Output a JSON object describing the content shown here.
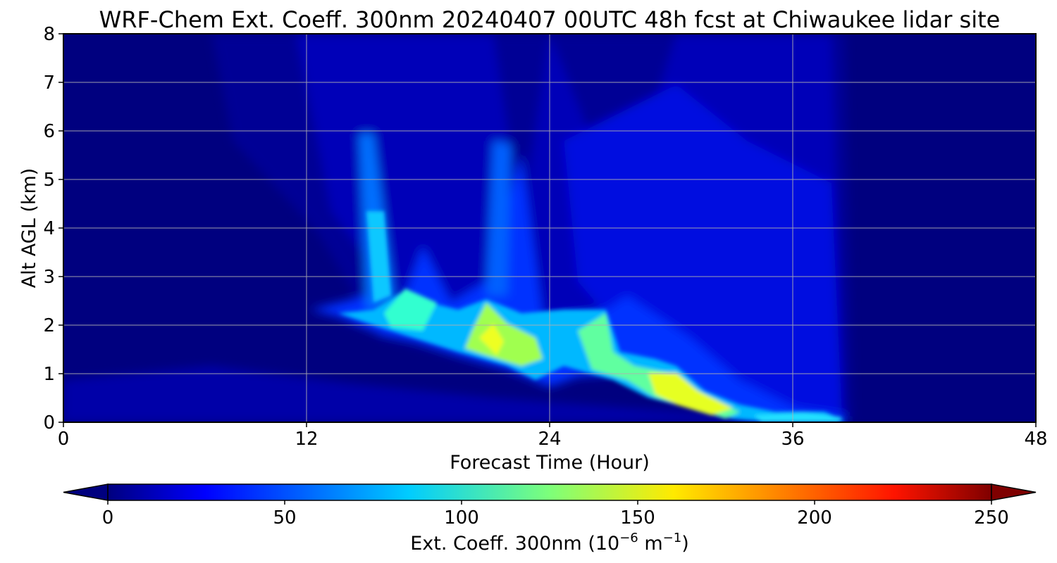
{
  "chart_data": {
    "type": "heatmap",
    "title": "WRF-Chem Ext. Coeff. 300nm  20240407 00UTC 48h fcst at Chiwaukee lidar site",
    "xlabel": "Forecast Time (Hour)",
    "ylabel": "Alt AGL (km)",
    "xlim": [
      0,
      48
    ],
    "ylim": [
      0,
      8
    ],
    "xticks": [
      "0",
      "12",
      "24",
      "36",
      "48"
    ],
    "yticks": [
      "0",
      "1",
      "2",
      "3",
      "4",
      "5",
      "6",
      "7",
      "8"
    ],
    "grid": true,
    "colormap": "jet",
    "colorbar": {
      "orientation": "horizontal",
      "position": "bottom",
      "label_main": "Ext. Coeff. 300nm  (10",
      "label_exp1": "−6",
      "label_mid": " m",
      "label_exp2": "−1",
      "label_end": ")",
      "range": [
        0,
        250
      ],
      "ticks": [
        "0",
        "50",
        "100",
        "150",
        "200",
        "250"
      ],
      "extend": "both"
    },
    "features": [
      {
        "x_hour": 0,
        "alt_km": 0.3,
        "value": 25
      },
      {
        "x_hour": 8,
        "alt_km": 0.4,
        "value": 28
      },
      {
        "x_hour": 12,
        "alt_km": 2.3,
        "value": 45
      },
      {
        "x_hour": 15,
        "alt_km": 2.2,
        "value": 92
      },
      {
        "x_hour": 15.5,
        "alt_km": 3.4,
        "value": 80
      },
      {
        "x_hour": 15.3,
        "alt_km": 5.2,
        "value": 55
      },
      {
        "x_hour": 17,
        "alt_km": 2.2,
        "value": 115
      },
      {
        "x_hour": 19,
        "alt_km": 2.0,
        "value": 100
      },
      {
        "x_hour": 21,
        "alt_km": 1.6,
        "value": 148
      },
      {
        "x_hour": 21.2,
        "alt_km": 2.4,
        "value": 95
      },
      {
        "x_hour": 22,
        "alt_km": 4.5,
        "value": 52
      },
      {
        "x_hour": 23,
        "alt_km": 1.2,
        "value": 115
      },
      {
        "x_hour": 25,
        "alt_km": 1.5,
        "value": 100
      },
      {
        "x_hour": 27,
        "alt_km": 1.5,
        "value": 112
      },
      {
        "x_hour": 28,
        "alt_km": 1.0,
        "value": 110
      },
      {
        "x_hour": 30,
        "alt_km": 0.75,
        "value": 148
      },
      {
        "x_hour": 32,
        "alt_km": 0.4,
        "value": 140
      },
      {
        "x_hour": 34,
        "alt_km": 0.15,
        "value": 110
      },
      {
        "x_hour": 37,
        "alt_km": 0.1,
        "value": 98
      },
      {
        "x_hour": 36,
        "alt_km": 3.0,
        "value": 38
      },
      {
        "x_hour": 30,
        "alt_km": 4.0,
        "value": 35
      },
      {
        "x_hour": 40,
        "alt_km": 2.0,
        "value": 5
      },
      {
        "x_hour": 45,
        "alt_km": 4.0,
        "value": 3
      }
    ]
  }
}
